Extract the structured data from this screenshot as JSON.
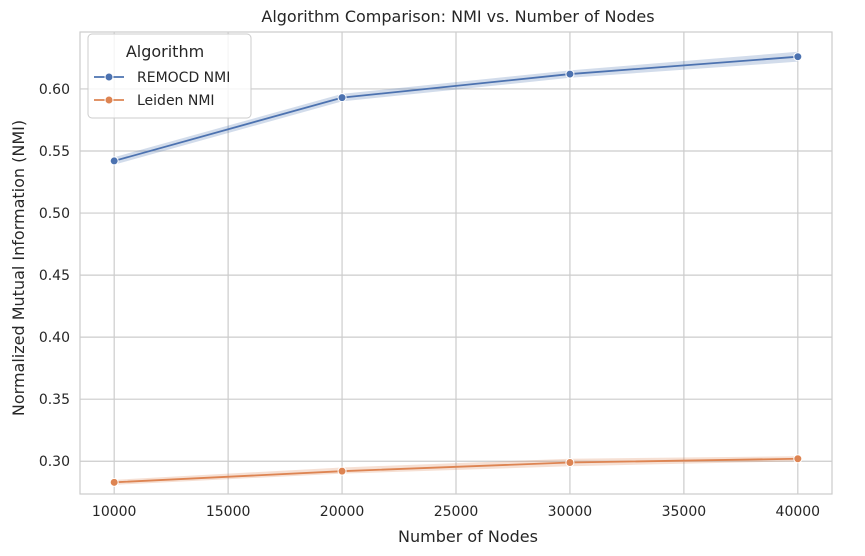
{
  "chart_data": {
    "type": "line",
    "title": "Algorithm Comparison: NMI vs. Number of Nodes",
    "xlabel": "Number of Nodes",
    "ylabel": "Normalized Mutual Information (NMI)",
    "x": [
      10000,
      20000,
      30000,
      40000
    ],
    "xticks": [
      10000,
      15000,
      20000,
      25000,
      30000,
      35000,
      40000
    ],
    "yticks": [
      0.3,
      0.35,
      0.4,
      0.45,
      0.5,
      0.55,
      0.6
    ],
    "xlim": [
      8500,
      41500
    ],
    "ylim": [
      0.2736,
      0.6459
    ],
    "grid": true,
    "legend": {
      "title": "Algorithm",
      "placement": "top-left"
    },
    "series": [
      {
        "name": "REMOCD NMI",
        "color": "#4c72b0",
        "values": [
          0.542,
          0.593,
          0.612,
          0.626
        ],
        "band_low": [
          0.539,
          0.59,
          0.609,
          0.622
        ],
        "band_high": [
          0.545,
          0.596,
          0.615,
          0.63
        ]
      },
      {
        "name": "Leiden NMI",
        "color": "#dd8452",
        "values": [
          0.283,
          0.292,
          0.299,
          0.302
        ],
        "band_low": [
          0.281,
          0.29,
          0.296,
          0.3
        ],
        "band_high": [
          0.285,
          0.295,
          0.302,
          0.304
        ]
      }
    ]
  }
}
